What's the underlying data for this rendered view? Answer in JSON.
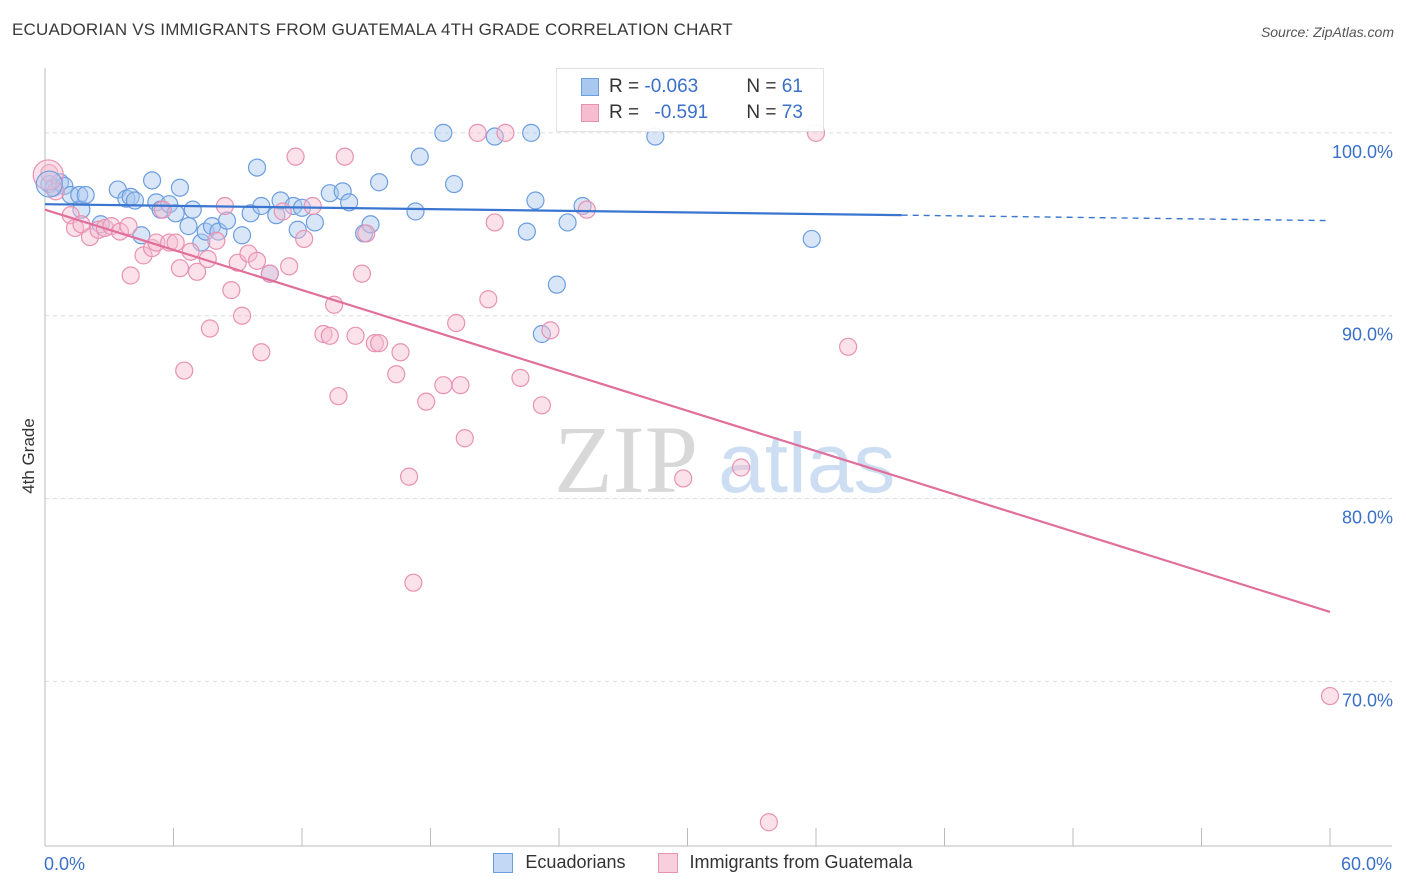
{
  "title": "ECUADORIAN VS IMMIGRANTS FROM GUATEMALA 4TH GRADE CORRELATION CHART",
  "source": "Source: ZipAtlas.com",
  "watermark": {
    "zip": "ZIP",
    "atlas": "atlas"
  },
  "legend": {
    "ecuadorians": {
      "r_label": "R = ",
      "r_value": "-0.063",
      "n_label": "N = ",
      "n_value": "61"
    },
    "guatemala": {
      "r_label": "R = ",
      "r_value": "-0.591",
      "n_label": "N = ",
      "n_value": "73"
    }
  },
  "bottom_legend": {
    "ecuadorians": "Ecuadorians",
    "guatemala": "Immigrants from Guatemala"
  },
  "colors": {
    "blue": "#3a76d0",
    "blue_fill": "#a9c8f0",
    "pink": "#e06f9c",
    "pink_fill": "#f6bcd0",
    "axis_text": "#3a70c8"
  },
  "chart_data": {
    "type": "scatter",
    "xlabel": "",
    "ylabel": "4th Grade",
    "xlim": [
      0,
      60
    ],
    "ylim": [
      61,
      103
    ],
    "x_tick_labels": [
      "0.0%",
      "60.0%"
    ],
    "y_ticks": [
      70,
      80,
      90,
      100
    ],
    "y_tick_labels": [
      "70.0%",
      "80.0%",
      "90.0%",
      "100.0%"
    ],
    "series": [
      {
        "name": "Ecuadorians",
        "trend": {
          "x": [
            0,
            40,
            60
          ],
          "y": [
            96.1,
            95.5,
            95.2
          ],
          "dashed_from": 40
        },
        "points": [
          [
            0.2,
            97.2
          ],
          [
            0.4,
            97.0
          ],
          [
            0.7,
            97.3
          ],
          [
            0.9,
            97.1
          ],
          [
            1.2,
            96.6
          ],
          [
            1.6,
            96.6
          ],
          [
            1.7,
            95.8
          ],
          [
            1.9,
            96.6
          ],
          [
            2.6,
            95.0
          ],
          [
            3.4,
            96.9
          ],
          [
            3.8,
            96.4
          ],
          [
            4.0,
            96.5
          ],
          [
            4.2,
            96.3
          ],
          [
            4.5,
            94.4
          ],
          [
            5.0,
            97.4
          ],
          [
            5.2,
            96.2
          ],
          [
            5.4,
            95.8
          ],
          [
            5.8,
            96.1
          ],
          [
            6.1,
            95.6
          ],
          [
            6.3,
            97.0
          ],
          [
            6.7,
            94.9
          ],
          [
            6.9,
            95.8
          ],
          [
            7.3,
            94.0
          ],
          [
            7.5,
            94.6
          ],
          [
            7.8,
            94.9
          ],
          [
            8.1,
            94.6
          ],
          [
            8.5,
            95.2
          ],
          [
            9.2,
            94.4
          ],
          [
            9.6,
            95.6
          ],
          [
            9.9,
            98.1
          ],
          [
            10.1,
            96.0
          ],
          [
            10.5,
            92.3
          ],
          [
            10.8,
            95.5
          ],
          [
            11.0,
            96.3
          ],
          [
            11.6,
            96.0
          ],
          [
            11.8,
            94.7
          ],
          [
            12.0,
            95.9
          ],
          [
            12.6,
            95.1
          ],
          [
            13.3,
            96.7
          ],
          [
            13.9,
            96.8
          ],
          [
            14.2,
            96.2
          ],
          [
            14.9,
            94.5
          ],
          [
            15.2,
            95.0
          ],
          [
            15.6,
            97.3
          ],
          [
            17.3,
            95.7
          ],
          [
            17.5,
            98.7
          ],
          [
            18.6,
            100.0
          ],
          [
            19.1,
            97.2
          ],
          [
            21.0,
            99.8
          ],
          [
            22.5,
            94.6
          ],
          [
            22.7,
            100.0
          ],
          [
            22.9,
            96.3
          ],
          [
            23.2,
            89.0
          ],
          [
            23.9,
            91.7
          ],
          [
            24.4,
            95.1
          ],
          [
            25.1,
            96.0
          ],
          [
            28.5,
            99.8
          ],
          [
            35.8,
            94.2
          ]
        ]
      },
      {
        "name": "Immigrants from Guatemala",
        "trend": {
          "x": [
            0,
            60
          ],
          "y": [
            95.8,
            73.8
          ]
        },
        "points": [
          [
            0.2,
            97.8
          ],
          [
            0.5,
            96.8
          ],
          [
            1.2,
            95.5
          ],
          [
            1.4,
            94.8
          ],
          [
            1.7,
            95.0
          ],
          [
            2.1,
            94.3
          ],
          [
            2.5,
            94.7
          ],
          [
            2.8,
            94.8
          ],
          [
            3.1,
            94.9
          ],
          [
            3.5,
            94.6
          ],
          [
            3.9,
            94.9
          ],
          [
            4.0,
            92.2
          ],
          [
            4.6,
            93.3
          ],
          [
            5.0,
            93.7
          ],
          [
            5.2,
            94.0
          ],
          [
            5.5,
            95.8
          ],
          [
            5.8,
            94.0
          ],
          [
            6.1,
            94.0
          ],
          [
            6.3,
            92.6
          ],
          [
            6.5,
            87.0
          ],
          [
            6.8,
            93.5
          ],
          [
            7.1,
            92.4
          ],
          [
            7.6,
            93.1
          ],
          [
            7.7,
            89.3
          ],
          [
            8.0,
            94.1
          ],
          [
            8.4,
            96.0
          ],
          [
            8.7,
            91.4
          ],
          [
            9.0,
            92.9
          ],
          [
            9.2,
            90.0
          ],
          [
            9.5,
            93.4
          ],
          [
            9.9,
            93.0
          ],
          [
            10.1,
            88.0
          ],
          [
            10.5,
            92.3
          ],
          [
            11.1,
            95.7
          ],
          [
            11.4,
            92.7
          ],
          [
            11.7,
            98.7
          ],
          [
            12.1,
            94.2
          ],
          [
            12.5,
            96.0
          ],
          [
            13.0,
            89.0
          ],
          [
            13.3,
            88.9
          ],
          [
            13.5,
            90.6
          ],
          [
            13.7,
            85.6
          ],
          [
            14.0,
            98.7
          ],
          [
            14.5,
            88.9
          ],
          [
            14.8,
            92.3
          ],
          [
            15.0,
            94.5
          ],
          [
            15.4,
            88.5
          ],
          [
            15.6,
            88.5
          ],
          [
            16.4,
            86.8
          ],
          [
            16.6,
            88.0
          ],
          [
            17.0,
            81.2
          ],
          [
            17.2,
            75.4
          ],
          [
            17.8,
            85.3
          ],
          [
            18.6,
            86.2
          ],
          [
            19.2,
            89.6
          ],
          [
            19.4,
            86.2
          ],
          [
            19.6,
            83.3
          ],
          [
            20.2,
            100.0
          ],
          [
            20.7,
            90.9
          ],
          [
            21.0,
            95.1
          ],
          [
            21.5,
            100.0
          ],
          [
            22.2,
            86.6
          ],
          [
            23.2,
            85.1
          ],
          [
            23.6,
            89.2
          ],
          [
            25.3,
            95.8
          ],
          [
            29.8,
            81.1
          ],
          [
            32.5,
            81.7
          ],
          [
            33.8,
            62.3
          ],
          [
            36.0,
            100.0
          ],
          [
            37.5,
            88.3
          ],
          [
            60.0,
            69.2
          ]
        ]
      }
    ]
  }
}
